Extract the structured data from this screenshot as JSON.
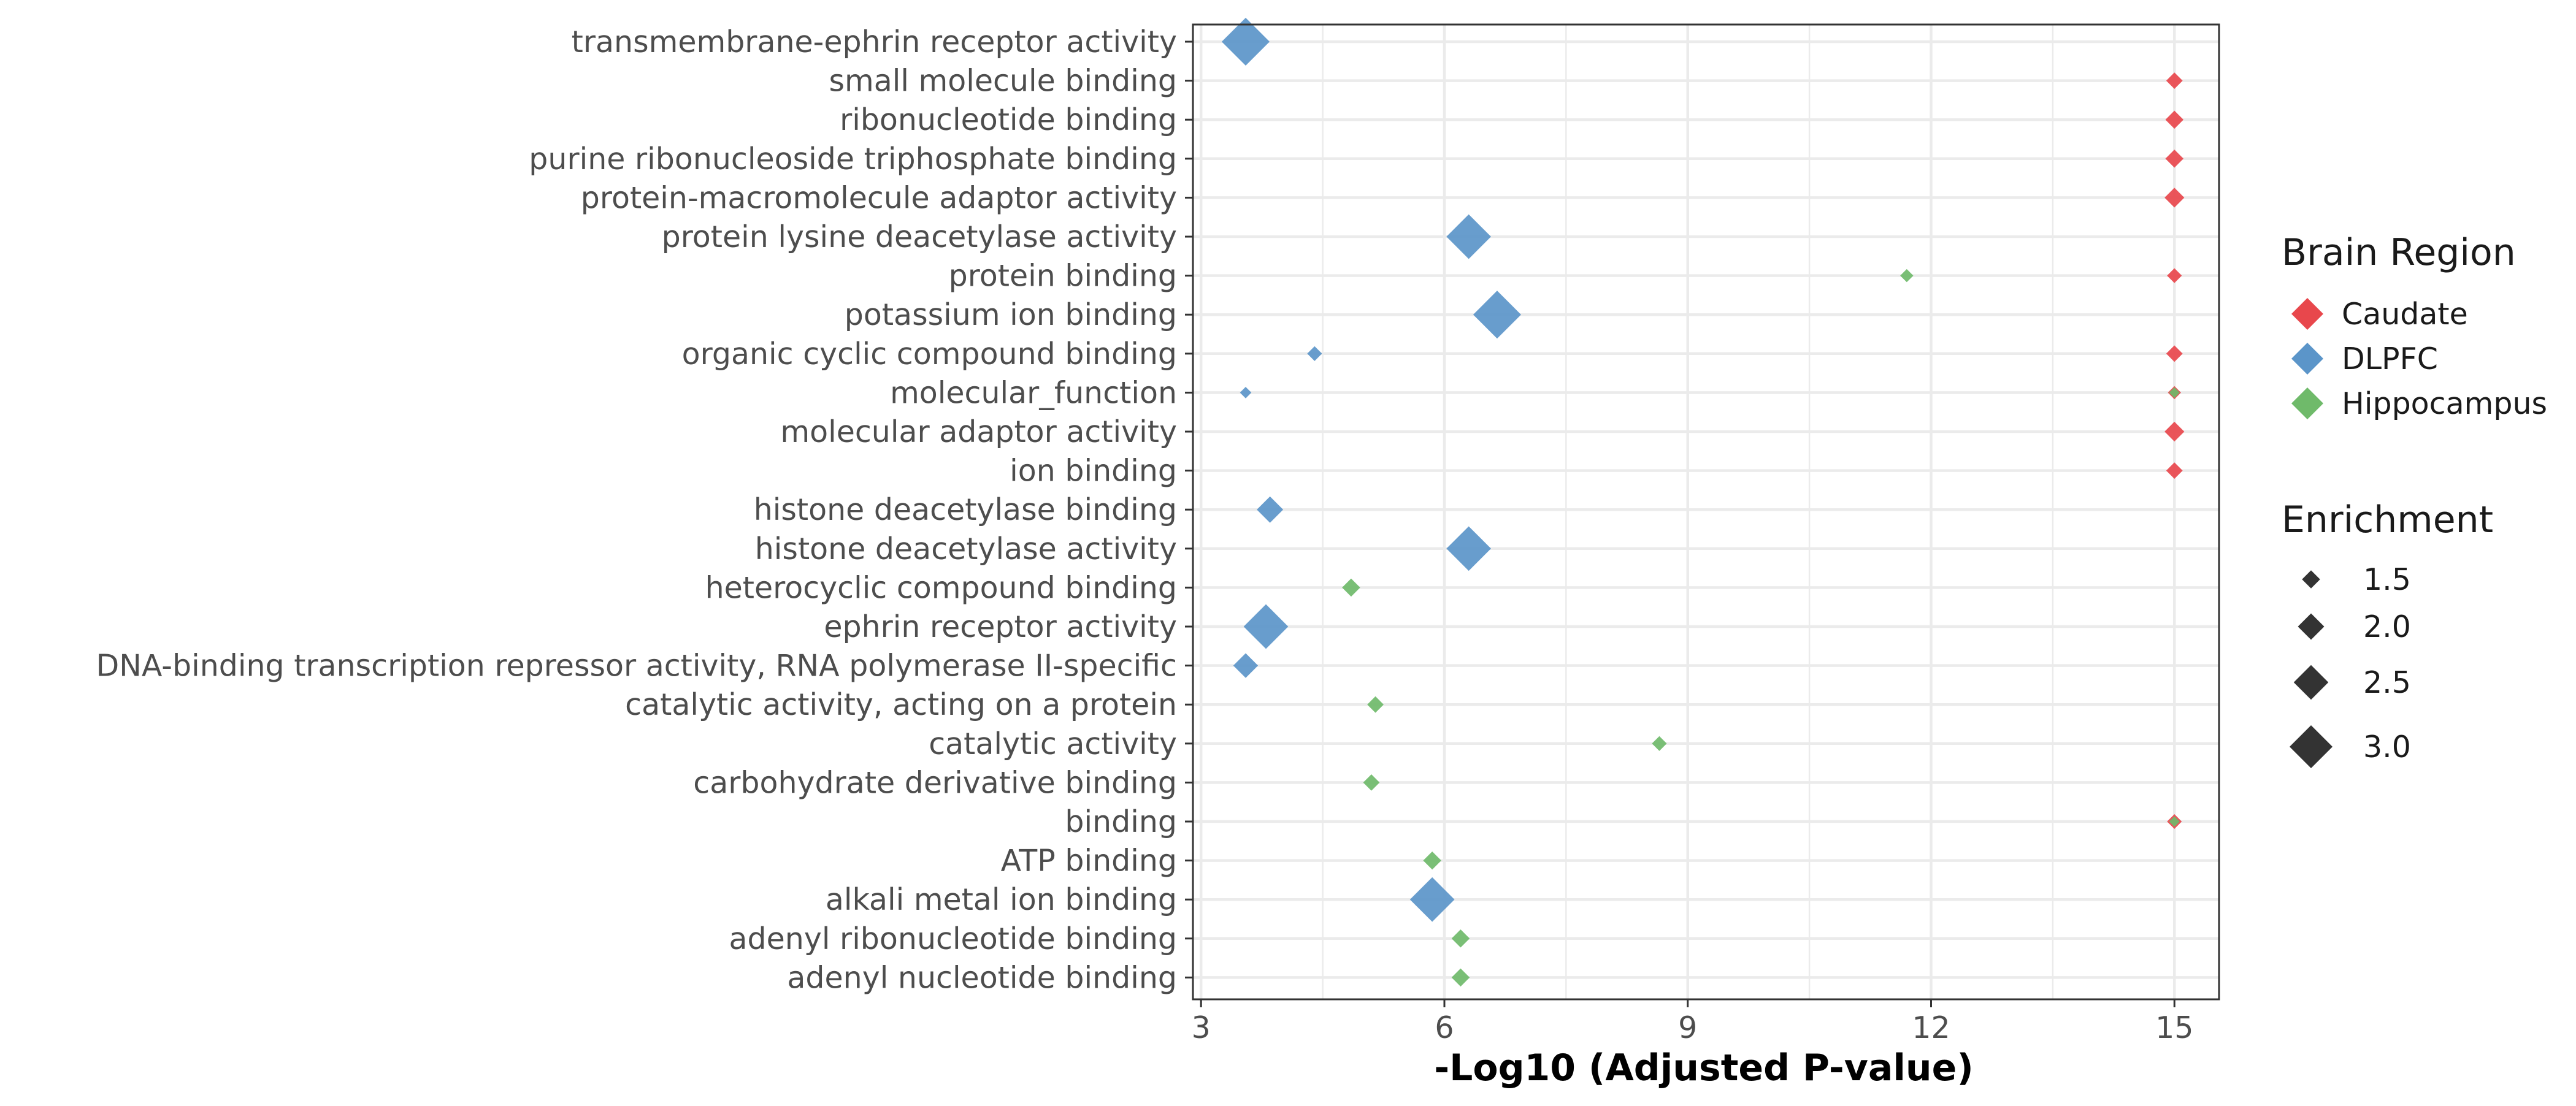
{
  "chart_data": {
    "type": "scatter",
    "title": "",
    "xlabel": "-Log10 (Adjusted P-value)",
    "ylabel": "",
    "xlim": [
      2.9,
      15.55
    ],
    "xticks": [
      "3",
      "6",
      "9",
      "12",
      "15"
    ],
    "grid": true,
    "legend_position": "right",
    "categories": [
      "transmembrane-ephrin receptor activity",
      "small molecule binding",
      "ribonucleotide binding",
      "purine ribonucleoside triphosphate binding",
      "protein-macromolecule adaptor activity",
      "protein lysine deacetylase activity",
      "protein binding",
      "potassium ion binding",
      "organic cyclic compound binding",
      "molecular_function",
      "molecular adaptor activity",
      "ion binding",
      "histone deacetylase binding",
      "histone deacetylase activity",
      "heterocyclic compound binding",
      "ephrin receptor activity",
      "DNA-binding transcription repressor activity, RNA polymerase II-specific",
      "catalytic activity, acting on a protein",
      "catalytic activity",
      "carbohydrate derivative binding",
      "binding",
      "ATP binding",
      "alkali metal ion binding",
      "adenyl ribonucleotide binding",
      "adenyl nucleotide binding"
    ],
    "color_legend": {
      "title": "Brain Region",
      "items": [
        {
          "label": "Caudate",
          "color": "#e8474c"
        },
        {
          "label": "DLPFC",
          "color": "#5b95c9"
        },
        {
          "label": "Hippocampus",
          "color": "#6fba6a"
        }
      ]
    },
    "size_legend": {
      "title": "Enrichment",
      "items": [
        {
          "label": "1.5",
          "value": 1.5
        },
        {
          "label": "2.0",
          "value": 2.0
        },
        {
          "label": "2.5",
          "value": 2.5
        },
        {
          "label": "3.0",
          "value": 3.0
        }
      ]
    },
    "series": [
      {
        "name": "Caudate",
        "color": "#e8474c",
        "points": [
          {
            "term": "small molecule binding",
            "x": 15.0,
            "enrichment": 1.4
          },
          {
            "term": "ribonucleotide binding",
            "x": 15.0,
            "enrichment": 1.5
          },
          {
            "term": "purine ribonucleoside triphosphate binding",
            "x": 15.0,
            "enrichment": 1.5
          },
          {
            "term": "protein-macromolecule adaptor activity",
            "x": 15.0,
            "enrichment": 1.6
          },
          {
            "term": "protein binding",
            "x": 15.0,
            "enrichment": 1.3
          },
          {
            "term": "organic cyclic compound binding",
            "x": 15.0,
            "enrichment": 1.4
          },
          {
            "term": "molecular_function",
            "x": 15.0,
            "enrichment": 1.2
          },
          {
            "term": "molecular adaptor activity",
            "x": 15.0,
            "enrichment": 1.6
          },
          {
            "term": "ion binding",
            "x": 15.0,
            "enrichment": 1.4
          },
          {
            "term": "binding",
            "x": 15.0,
            "enrichment": 1.3
          }
        ]
      },
      {
        "name": "DLPFC",
        "color": "#5b95c9",
        "points": [
          {
            "term": "transmembrane-ephrin receptor activity",
            "x": 3.55,
            "enrichment": 3.3
          },
          {
            "term": "protein lysine deacetylase activity",
            "x": 6.3,
            "enrichment": 3.1
          },
          {
            "term": "potassium ion binding",
            "x": 6.65,
            "enrichment": 3.3
          },
          {
            "term": "organic cyclic compound binding",
            "x": 4.4,
            "enrichment": 1.3
          },
          {
            "term": "molecular_function",
            "x": 3.55,
            "enrichment": 1.1
          },
          {
            "term": "histone deacetylase binding",
            "x": 3.85,
            "enrichment": 2.0
          },
          {
            "term": "histone deacetylase activity",
            "x": 6.3,
            "enrichment": 3.1
          },
          {
            "term": "ephrin receptor activity",
            "x": 3.8,
            "enrichment": 3.1
          },
          {
            "term": "DNA-binding transcription repressor activity, RNA polymerase II-specific",
            "x": 3.55,
            "enrichment": 1.9
          },
          {
            "term": "alkali metal ion binding",
            "x": 5.85,
            "enrichment": 3.1
          }
        ]
      },
      {
        "name": "Hippocampus",
        "color": "#6fba6a",
        "points": [
          {
            "term": "protein binding",
            "x": 11.7,
            "enrichment": 1.2
          },
          {
            "term": "molecular_function",
            "x": 15.0,
            "enrichment": 1.05
          },
          {
            "term": "heterocyclic compound binding",
            "x": 4.85,
            "enrichment": 1.5
          },
          {
            "term": "catalytic activity, acting on a protein",
            "x": 5.15,
            "enrichment": 1.4
          },
          {
            "term": "catalytic activity",
            "x": 8.65,
            "enrichment": 1.3
          },
          {
            "term": "carbohydrate derivative binding",
            "x": 5.1,
            "enrichment": 1.4
          },
          {
            "term": "binding",
            "x": 15.0,
            "enrichment": 1.05
          },
          {
            "term": "ATP binding",
            "x": 5.85,
            "enrichment": 1.5
          },
          {
            "term": "adenyl ribonucleotide binding",
            "x": 6.2,
            "enrichment": 1.5
          },
          {
            "term": "adenyl nucleotide binding",
            "x": 6.2,
            "enrichment": 1.5
          }
        ]
      }
    ]
  }
}
